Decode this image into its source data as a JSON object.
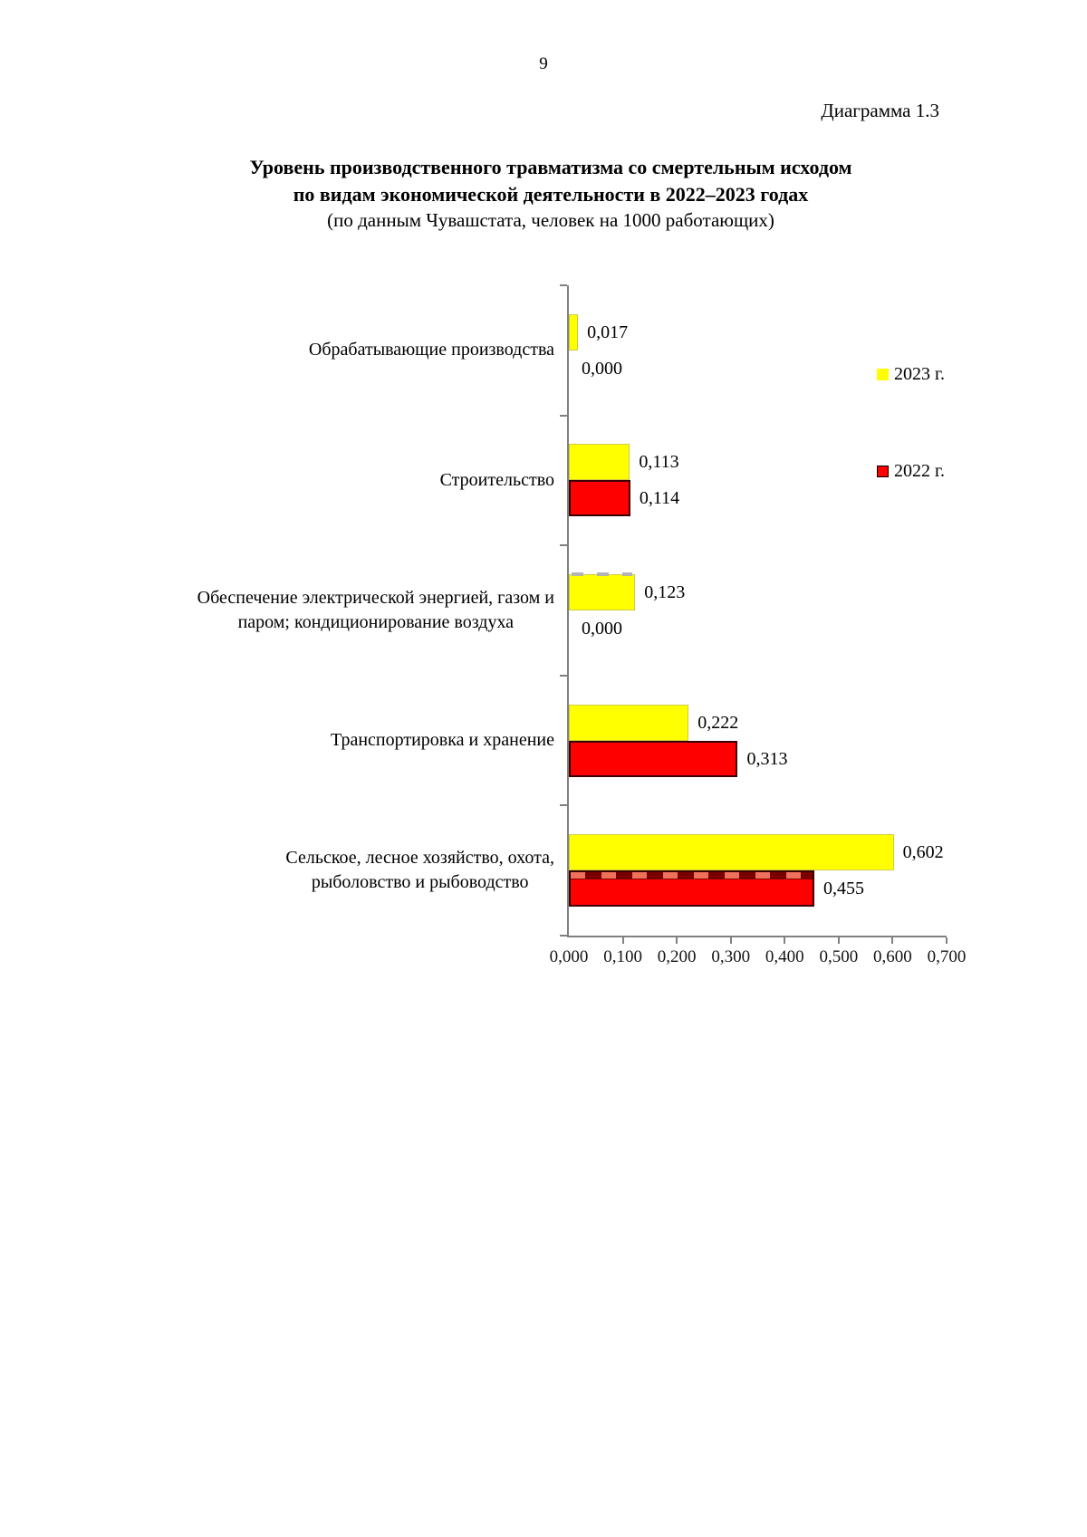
{
  "page": {
    "number": "9",
    "figure_label": "Диаграмма 1.3"
  },
  "chart": {
    "title_line1": "Уровень производственного травматизма со смертельным исходом",
    "title_line2": "по видам экономической деятельности в 2022–2023 годах",
    "subtitle": "(по данным Чувашстата, человек на 1000 работающих)"
  },
  "chart_data": {
    "type": "bar",
    "orientation": "horizontal",
    "title": "Уровень производственного травматизма со смертельным исходом по видам экономической деятельности в 2022–2023 годах",
    "subtitle": "(по данным Чувашстата, человек на 1000 работающих)",
    "categories": [
      {
        "lines": [
          "Обрабатывающие производства"
        ]
      },
      {
        "lines": [
          "Строительство"
        ]
      },
      {
        "lines": [
          "Обеспечение электрической энергией, газом и",
          "паром; кондиционирование воздуха"
        ]
      },
      {
        "lines": [
          "Транспортировка и хранение"
        ]
      },
      {
        "lines": [
          "Сельское, лесное хозяйство, охота,",
          "рыболовство и рыбоводство"
        ]
      }
    ],
    "series": [
      {
        "name": "2023 г.",
        "color": "#FFFF00",
        "values": [
          0.017,
          0.113,
          0.123,
          0.222,
          0.602
        ],
        "labels": [
          "0,017",
          "0,113",
          "0,123",
          "0,222",
          "0,602"
        ]
      },
      {
        "name": "2022 г.",
        "color": "#FF0000",
        "values": [
          0.0,
          0.114,
          0.0,
          0.313,
          0.455
        ],
        "labels": [
          "0,000",
          "0,114",
          "0,000",
          "0,313",
          "0,455"
        ]
      }
    ],
    "legend": [
      {
        "label": "2023 г.",
        "color": "#FFFF00"
      },
      {
        "label": "2022 г.",
        "color": "#FF0000"
      }
    ],
    "x_ticks": [
      "0,000",
      "0,100",
      "0,200",
      "0,300",
      "0,400",
      "0,500",
      "0,600",
      "0,700"
    ],
    "xlim": [
      0,
      0.7
    ],
    "grid": false,
    "legend_position": "right",
    "axis_color": "#808080"
  }
}
